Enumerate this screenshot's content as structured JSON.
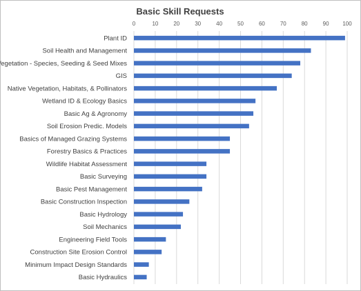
{
  "chart_data": {
    "type": "bar",
    "orientation": "horizontal",
    "title": "Basic Skill Requests",
    "xlim": [
      0,
      100
    ],
    "x_ticks": [
      0,
      10,
      20,
      30,
      40,
      50,
      60,
      70,
      80,
      90,
      100
    ],
    "tick_labels": [
      "0",
      "10",
      "20",
      "30",
      "40",
      "50",
      "60",
      "70",
      "80",
      "90",
      "100"
    ],
    "x_axis_position": "top",
    "grid": true,
    "bar_color": "#4472c4",
    "categories": [
      "Plant ID",
      "Soil Health and Management",
      "Vegetation - Species, Seeding & Seed Mixes",
      "GIS",
      "Native Vegetation, Habitats, & Pollinators",
      "Wetland ID & Ecology Basics",
      "Basic Ag & Agronomy",
      "Soil Erosion Predic. Models",
      "Basics of Managed Grazing Systems",
      "Forestry Basics & Practices",
      "Wildlife Habitat Assessment",
      "Basic Surveying",
      "Basic Pest Management",
      "Basic Construction Inspection",
      "Basic Hydrology",
      "Soil Mechanics",
      "Engineering Field Tools",
      "Construction Site Erosion Control",
      "Minimum Impact Design Standards",
      "Basic Hydraulics"
    ],
    "values": [
      99,
      83,
      78,
      74,
      67,
      57,
      56,
      54,
      45,
      45,
      34,
      34,
      32,
      26,
      23,
      22,
      15,
      13,
      7,
      6
    ]
  }
}
